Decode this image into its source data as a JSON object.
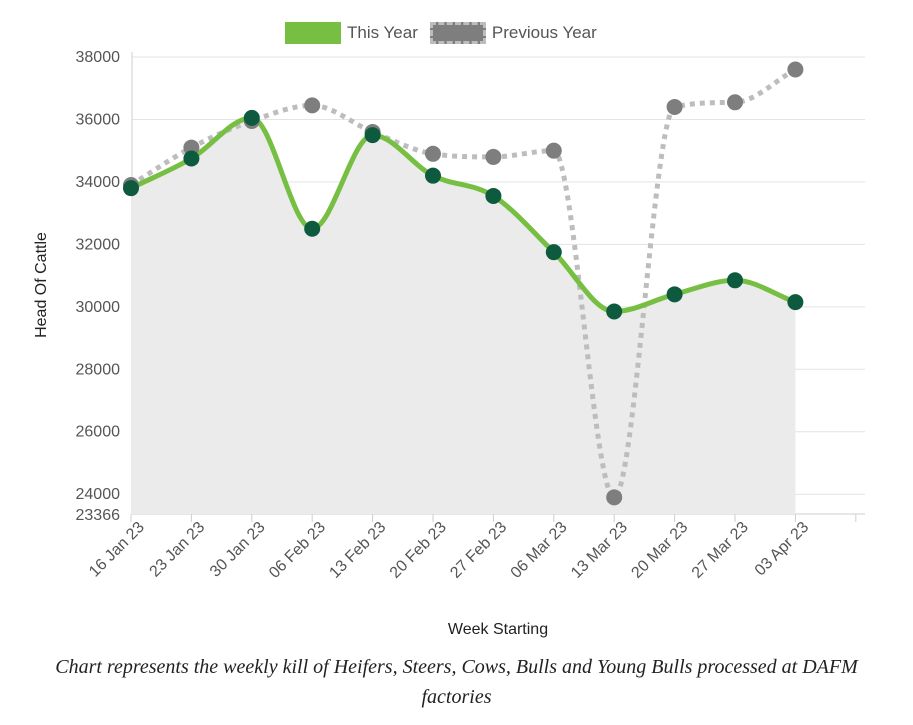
{
  "legend": {
    "this_year": "This Year",
    "previous_year": "Previous Year"
  },
  "caption": "Chart represents the weekly kill of Heifers, Steers, Cows, Bulls and Young Bulls processed at DAFM factories",
  "colors": {
    "this_year": "#77bf43",
    "this_year_points": "#0d5a3f",
    "previous_year": "#bdbdbd",
    "previous_year_points": "#7e7e7e",
    "fill": "#ebebeb"
  },
  "chart_data": {
    "type": "line",
    "xlabel": "Week Starting",
    "ylabel": "Head Of Cattle",
    "categories": [
      "16 Jan 23",
      "23 Jan 23",
      "30 Jan 23",
      "06 Feb 23",
      "13 Feb 23",
      "20 Feb 23",
      "27 Feb 23",
      "06 Mar 23",
      "13 Mar 23",
      "20 Mar 23",
      "27 Mar 23",
      "03 Apr 23"
    ],
    "ylim": [
      23366,
      38000
    ],
    "yticks": [
      23366,
      24000,
      26000,
      28000,
      30000,
      32000,
      34000,
      36000,
      38000
    ],
    "grid": true,
    "legend_position": "top",
    "series": [
      {
        "name": "This Year",
        "style": "solid",
        "area_fill": true,
        "values": [
          33800,
          34750,
          36050,
          32500,
          35500,
          34200,
          33550,
          31750,
          29850,
          30400,
          30850,
          30150
        ]
      },
      {
        "name": "Previous Year",
        "style": "dotted",
        "values": [
          33900,
          35100,
          35950,
          36450,
          35600,
          34900,
          34800,
          35000,
          23900,
          36400,
          36550,
          37600
        ]
      }
    ]
  }
}
